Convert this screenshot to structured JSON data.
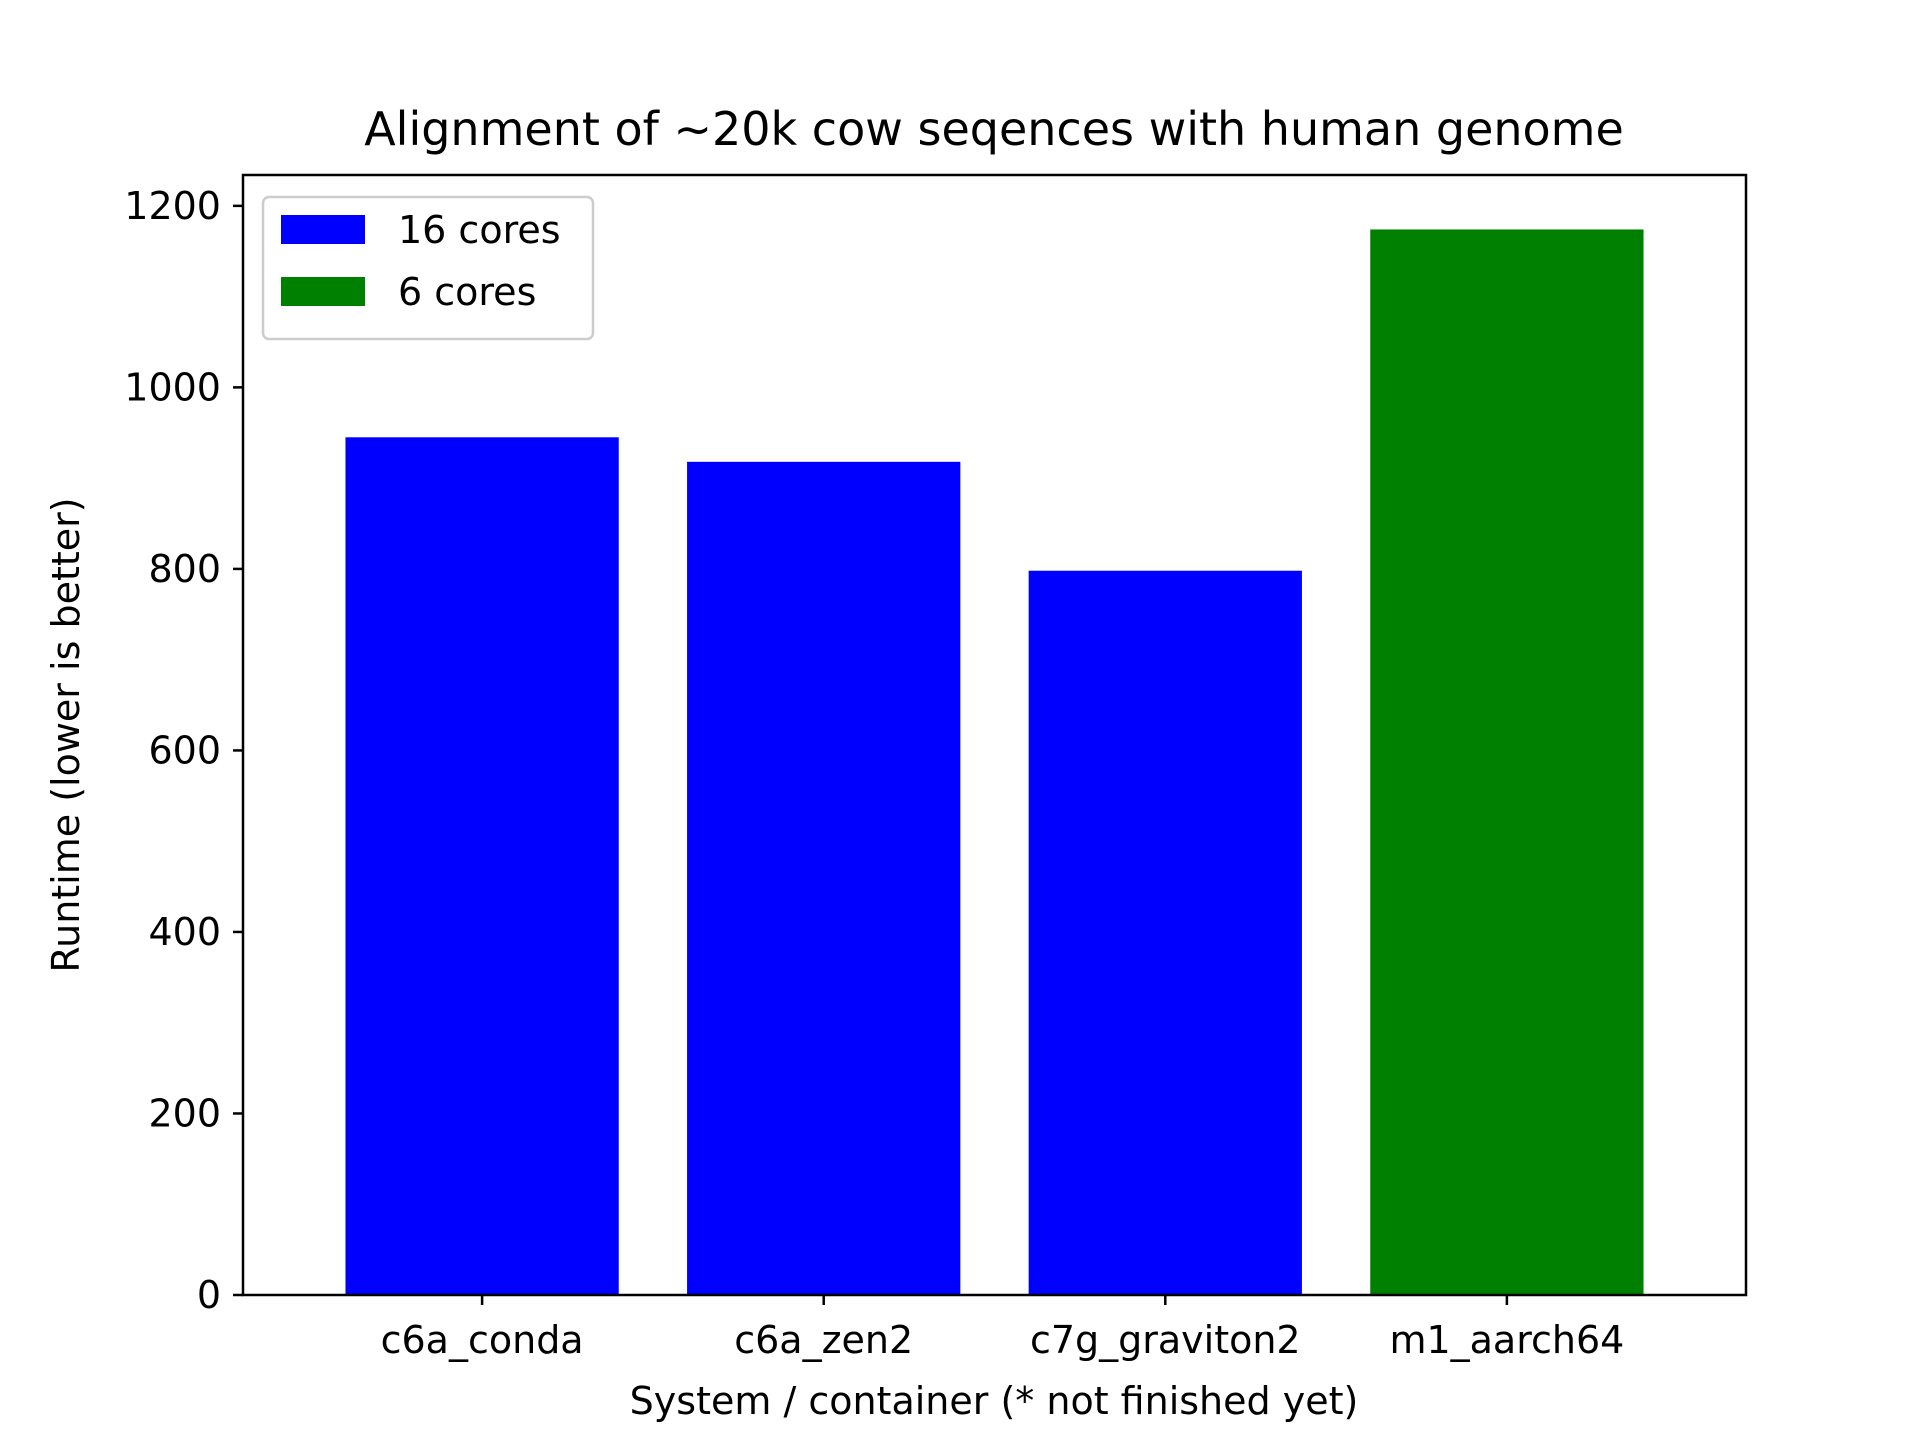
{
  "chart_data": {
    "type": "bar",
    "title": "Alignment of ~20k cow seqences with human genome",
    "xlabel": "System / container (* not finished yet)",
    "ylabel": "Runtime (lower is better)",
    "categories": [
      "c6a_conda",
      "c6a_zen2",
      "c7g_graviton2",
      "m1_aarch64"
    ],
    "series": [
      {
        "name": "16 cores",
        "color": "#0000ff",
        "values": [
          945,
          918,
          798,
          null
        ]
      },
      {
        "name": "6 cores",
        "color": "#008000",
        "values": [
          null,
          null,
          null,
          1174
        ]
      }
    ],
    "ylim": [
      0,
      1234
    ],
    "yticks": [
      0,
      200,
      400,
      600,
      800,
      1000,
      1200
    ],
    "grid": false,
    "legend_position": "upper left"
  }
}
